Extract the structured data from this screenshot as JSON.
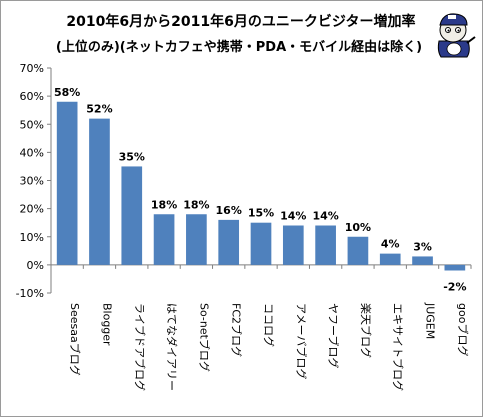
{
  "chart_data": {
    "type": "bar",
    "title": "2010年6月から2011年6月のユニークビジター増加率",
    "subtitle": "(上位のみ)(ネットカフェや携帯・PDA・モバイル経由は除く)",
    "categories": [
      "Seesaaブログ",
      "Blogger",
      "ライブドアブログ",
      "はてなダイアリー",
      "So-netブログ",
      "FC2ブログ",
      "ココログ",
      "アメーバブログ",
      "ヤフーブログ",
      "楽天ブログ",
      "エキサイトブログ",
      "JUGEM",
      "gooブログ"
    ],
    "values": [
      58,
      52,
      35,
      18,
      18,
      16,
      15,
      14,
      14,
      10,
      4,
      3,
      -2
    ],
    "data_labels": [
      "58%",
      "52%",
      "35%",
      "18%",
      "18%",
      "16%",
      "15%",
      "14%",
      "14%",
      "10%",
      "4%",
      "3%",
      "-2%"
    ],
    "y_ticks": [
      70,
      60,
      50,
      40,
      30,
      20,
      10,
      0,
      -10
    ],
    "y_tick_labels": [
      "70%",
      "60%",
      "50%",
      "40%",
      "30%",
      "20%",
      "10%",
      "0%",
      "-10%"
    ],
    "ylim": [
      -10,
      70
    ],
    "grid": false,
    "bar_color": "#4f81bd",
    "mascot_icon": "blogger-mascot-icon"
  }
}
